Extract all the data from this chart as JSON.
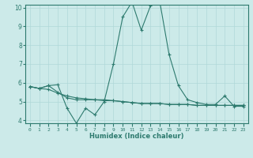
{
  "xlabel": "Humidex (Indice chaleur)",
  "x": [
    0,
    1,
    2,
    3,
    4,
    5,
    6,
    7,
    8,
    9,
    10,
    11,
    12,
    13,
    14,
    15,
    16,
    17,
    18,
    19,
    20,
    21,
    22,
    23
  ],
  "line1": [
    5.8,
    5.7,
    5.85,
    5.9,
    4.65,
    3.85,
    4.65,
    4.3,
    5.0,
    7.0,
    9.5,
    10.3,
    8.8,
    10.1,
    10.3,
    7.5,
    5.85,
    5.1,
    4.95,
    4.85,
    4.85,
    5.3,
    4.75,
    4.75
  ],
  "line2": [
    5.8,
    5.7,
    5.85,
    5.5,
    5.2,
    5.1,
    5.1,
    5.1,
    5.1,
    5.05,
    5.0,
    4.95,
    4.9,
    4.9,
    4.9,
    4.85,
    4.85,
    4.85,
    4.8,
    4.8,
    4.8,
    4.8,
    4.8,
    4.8
  ],
  "line3": [
    5.8,
    5.7,
    5.65,
    5.45,
    5.3,
    5.2,
    5.15,
    5.1,
    5.05,
    5.05,
    5.0,
    4.95,
    4.9,
    4.9,
    4.9,
    4.85,
    4.85,
    4.85,
    4.8,
    4.8,
    4.8,
    4.8,
    4.8,
    4.8
  ],
  "line_color": "#2d7a6e",
  "bg_color": "#cceae9",
  "grid_color": "#b0d8d8",
  "axis_color": "#2d7a6e",
  "ylim": [
    4,
    10
  ],
  "xlim": [
    -0.5,
    23.5
  ]
}
